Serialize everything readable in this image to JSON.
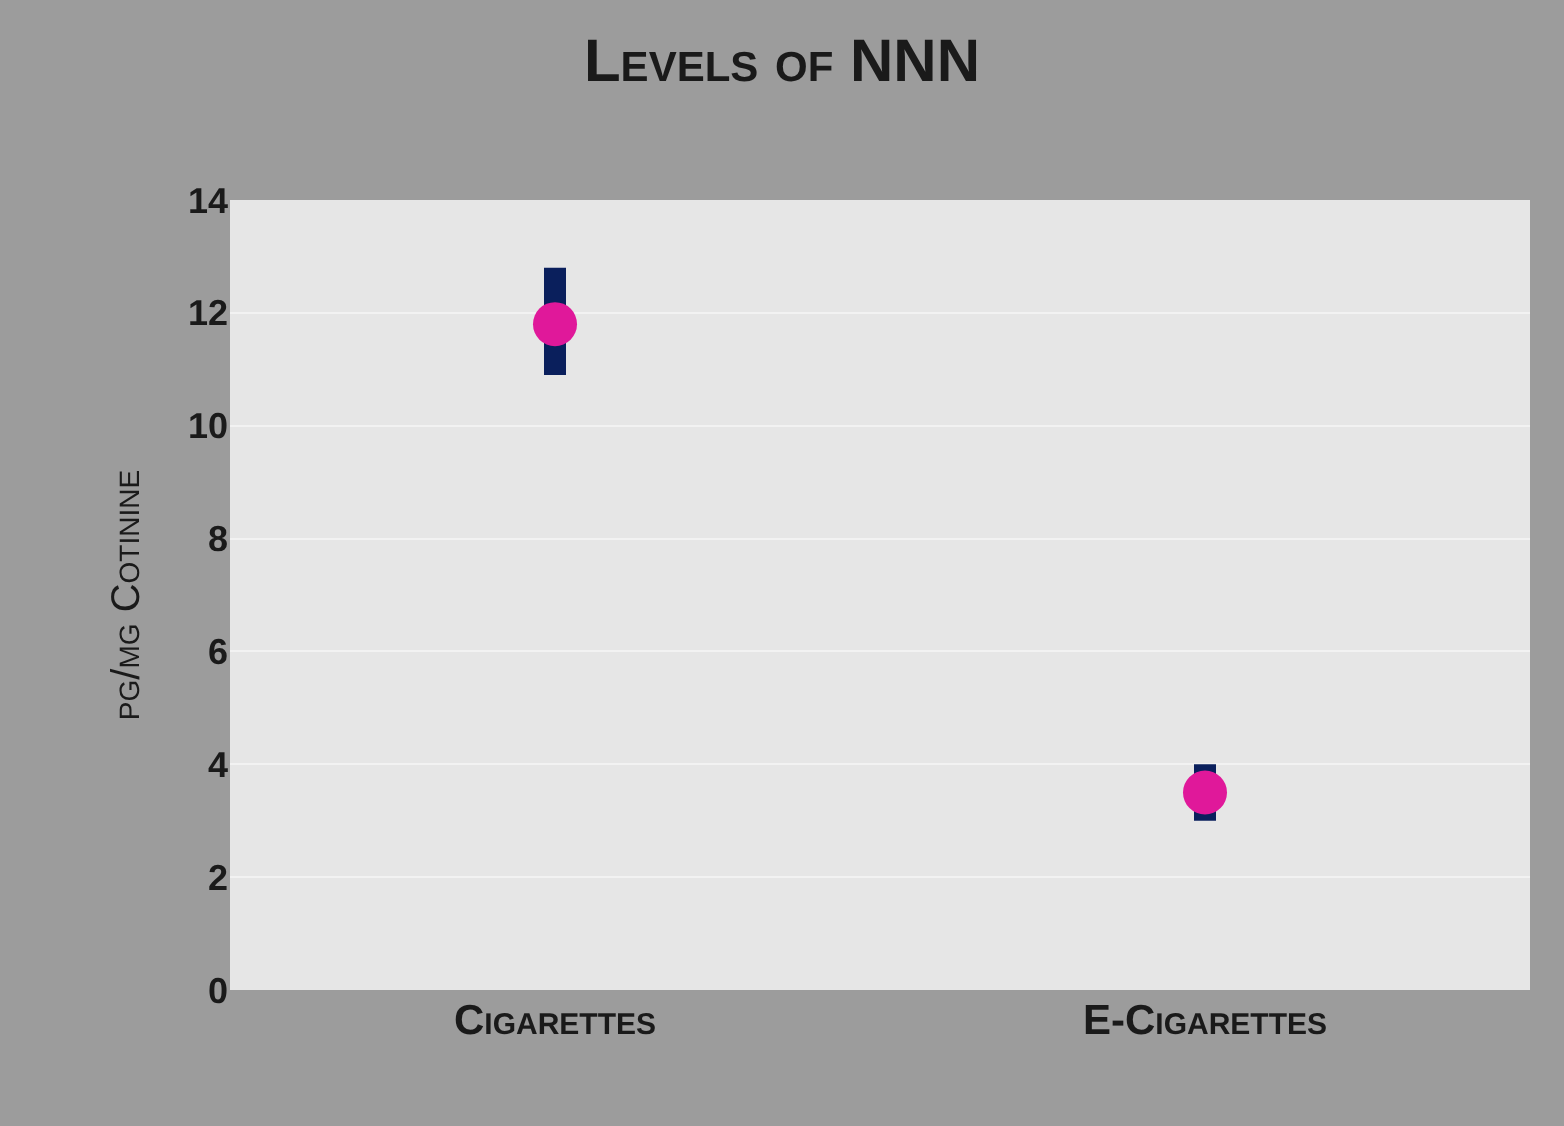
{
  "chart_data": {
    "type": "scatter",
    "title": "Levels of NNN",
    "ylabel": "pg/mg Cotinine",
    "categories": [
      "Cigarettes",
      "E-Cigarettes"
    ],
    "series": [
      {
        "color": "#e0189a",
        "values": [
          11.8,
          3.5
        ],
        "errors": [
          [
            10.9,
            12.8
          ],
          [
            3.0,
            4.0
          ]
        ]
      }
    ],
    "ylim": [
      0,
      14
    ],
    "yticks": [
      0,
      2,
      4,
      6,
      8,
      10,
      12,
      14
    ],
    "grid": "y",
    "legend": false,
    "marker": "circle"
  }
}
